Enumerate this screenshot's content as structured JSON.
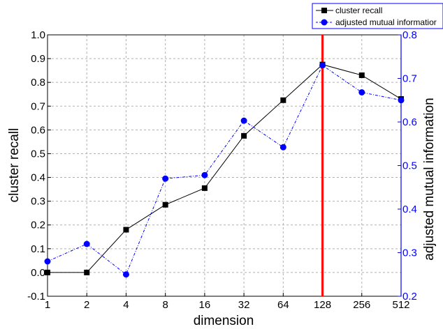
{
  "chart_data": {
    "type": "line",
    "xlabel": "dimension",
    "ylabel": "cluster recall",
    "y2label": "adjusted mutual information",
    "categories": [
      "1",
      "2",
      "4",
      "8",
      "16",
      "32",
      "64",
      "128",
      "256",
      "512"
    ],
    "ylim": [
      -0.1,
      1.0
    ],
    "y2lim": [
      0.2,
      0.8
    ],
    "yticks": [
      "-0.1",
      "0.0",
      "0.1",
      "0.2",
      "0.3",
      "0.4",
      "0.5",
      "0.6",
      "0.7",
      "0.8",
      "0.9",
      "1.0"
    ],
    "y2ticks": [
      "0.2",
      "0.3",
      "0.4",
      "0.5",
      "0.6",
      "0.7",
      "0.8"
    ],
    "grid": true,
    "legend_position": "top-right",
    "marker_line": {
      "x": "128",
      "color": "#ff0000"
    },
    "series": [
      {
        "name": "cluster recall",
        "axis": "left",
        "color": "#000000",
        "marker": "square",
        "values": [
          0.0,
          0.0,
          0.18,
          0.285,
          0.355,
          0.575,
          0.725,
          0.875,
          0.83,
          0.73
        ]
      },
      {
        "name": "adjusted mutual informatior",
        "axis": "right",
        "color": "#0000ff",
        "marker": "circle",
        "values": [
          0.28,
          0.32,
          0.25,
          0.47,
          0.478,
          0.603,
          0.542,
          0.73,
          0.668,
          0.65
        ]
      }
    ]
  }
}
